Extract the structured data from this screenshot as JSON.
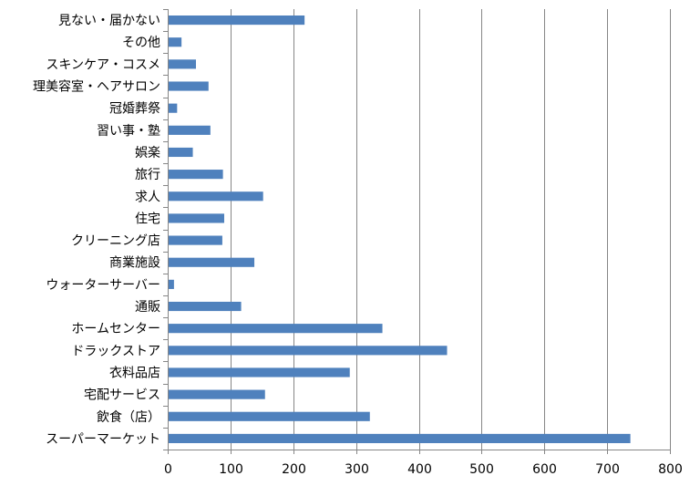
{
  "chart_data": {
    "type": "bar",
    "orientation": "horizontal",
    "categories": [
      "見ない・届かない",
      "その他",
      "スキンケア・コスメ",
      "理美容室・ヘアサロン",
      "冠婚葬祭",
      "習い事・塾",
      "娯楽",
      "旅行",
      "求人",
      "住宅",
      "クリーニング店",
      "商業施設",
      "ウォーターサーバー",
      "通販",
      "ホームセンター",
      "ドラックストア",
      "衣料品店",
      "宅配サービス",
      "飲食（店）",
      "スーパーマーケット"
    ],
    "values": [
      218,
      22,
      45,
      65,
      15,
      68,
      40,
      88,
      152,
      90,
      87,
      138,
      10,
      117,
      342,
      445,
      290,
      155,
      322,
      737
    ],
    "xlim": [
      0,
      800
    ],
    "xticks": [
      0,
      100,
      200,
      300,
      400,
      500,
      600,
      700,
      800
    ],
    "title": "",
    "xlabel": "",
    "ylabel": "",
    "grid": "vertical",
    "legend": "none",
    "bar_color": "#4f81bd"
  }
}
